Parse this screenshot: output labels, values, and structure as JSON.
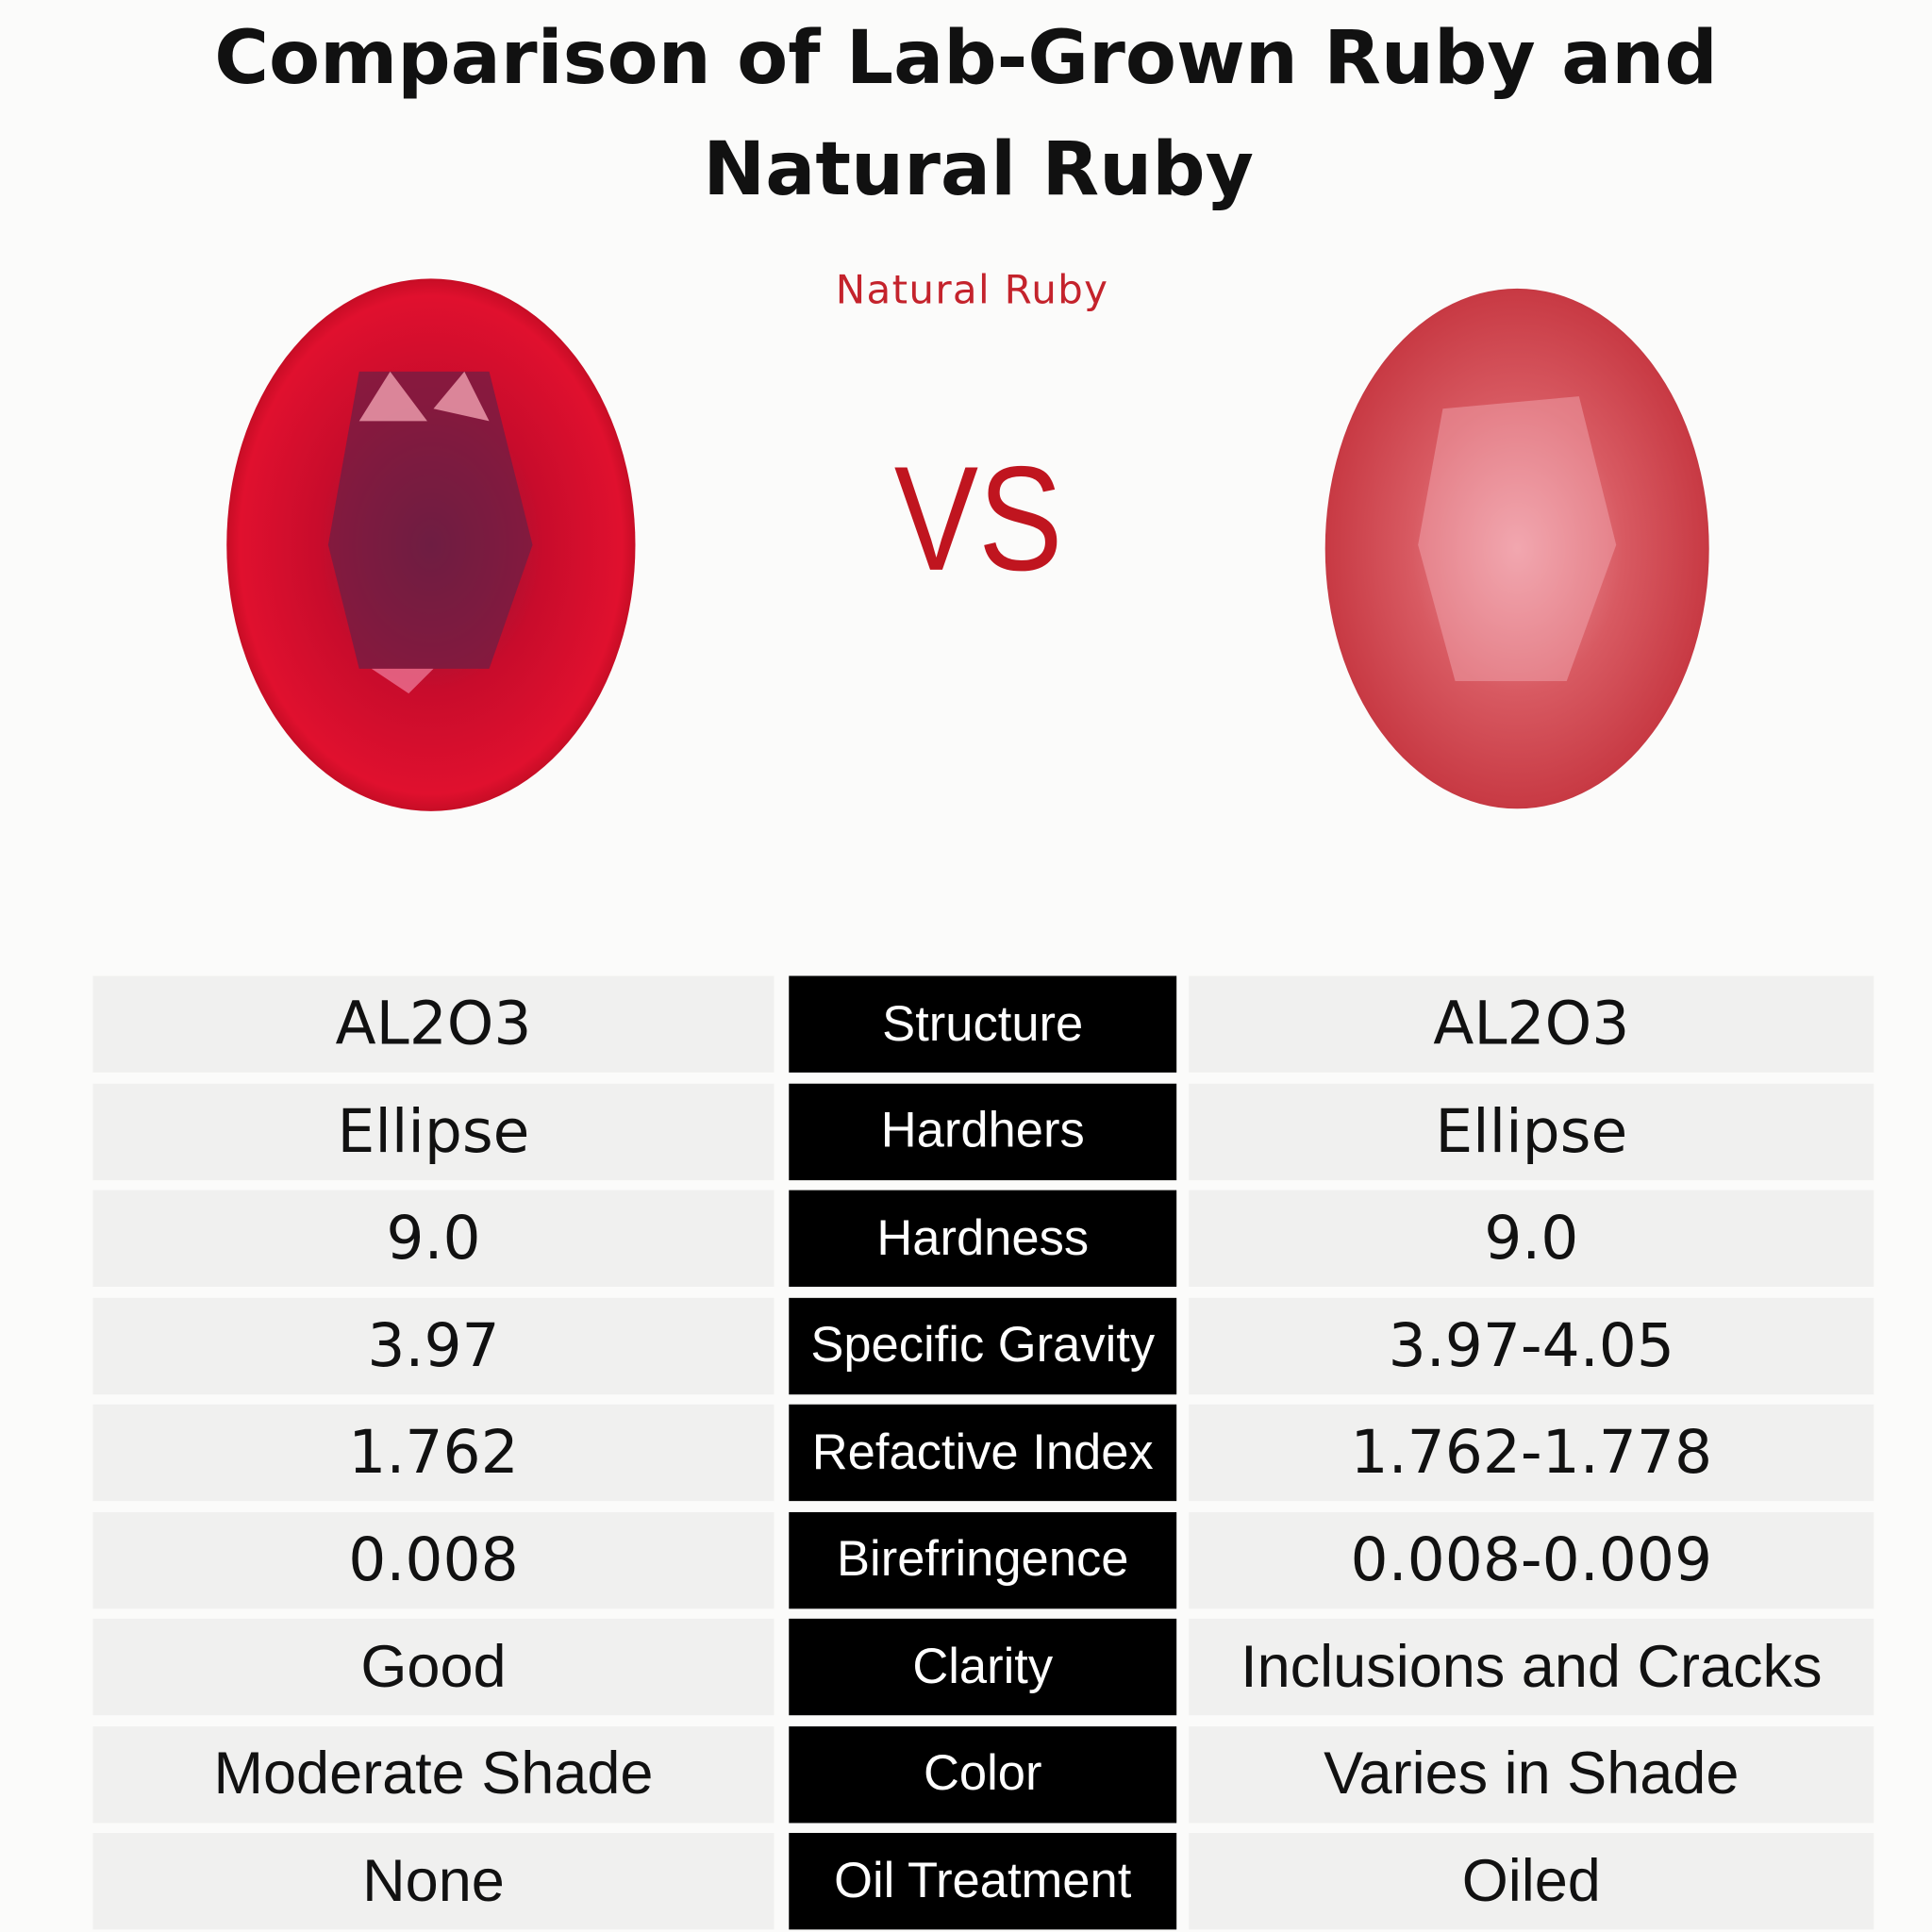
{
  "header": {
    "title_line1": "Comparison of Lab-Grown Ruby and",
    "title_line2": "Natural Ruby",
    "subtitle": "Natural  Ruby",
    "vs": "VS"
  },
  "colors": {
    "accent": "#c0151f",
    "lab_ruby": "#d5102e",
    "natural_ruby": "#d8505a",
    "label_bg": "#000000",
    "cell_bg": "#f0f0ef"
  },
  "table": {
    "rows": [
      {
        "left": "AL2O3",
        "label": "Structure",
        "right": "AL2O3"
      },
      {
        "left": "Ellipse",
        "label": "Hardhers",
        "right": "Ellipse"
      },
      {
        "left": "9.0",
        "label": "Hardness",
        "right": "9.0"
      },
      {
        "left": "3.97",
        "label": "Specific Gravity",
        "right": "3.97-4.05"
      },
      {
        "left": "1.762",
        "label": "Refactive Index",
        "right": "1.762-1.778"
      },
      {
        "left": "0.008",
        "label": "Birefringence",
        "right": "0.008-0.009"
      },
      {
        "left": "Good",
        "label": "Clarity",
        "right": "Inclusions and Cracks"
      },
      {
        "left": "Moderate Shade",
        "label": "Color",
        "right": "Varies in Shade"
      },
      {
        "left": "None",
        "label": "Oil Treatment",
        "right": "Oiled"
      }
    ]
  }
}
